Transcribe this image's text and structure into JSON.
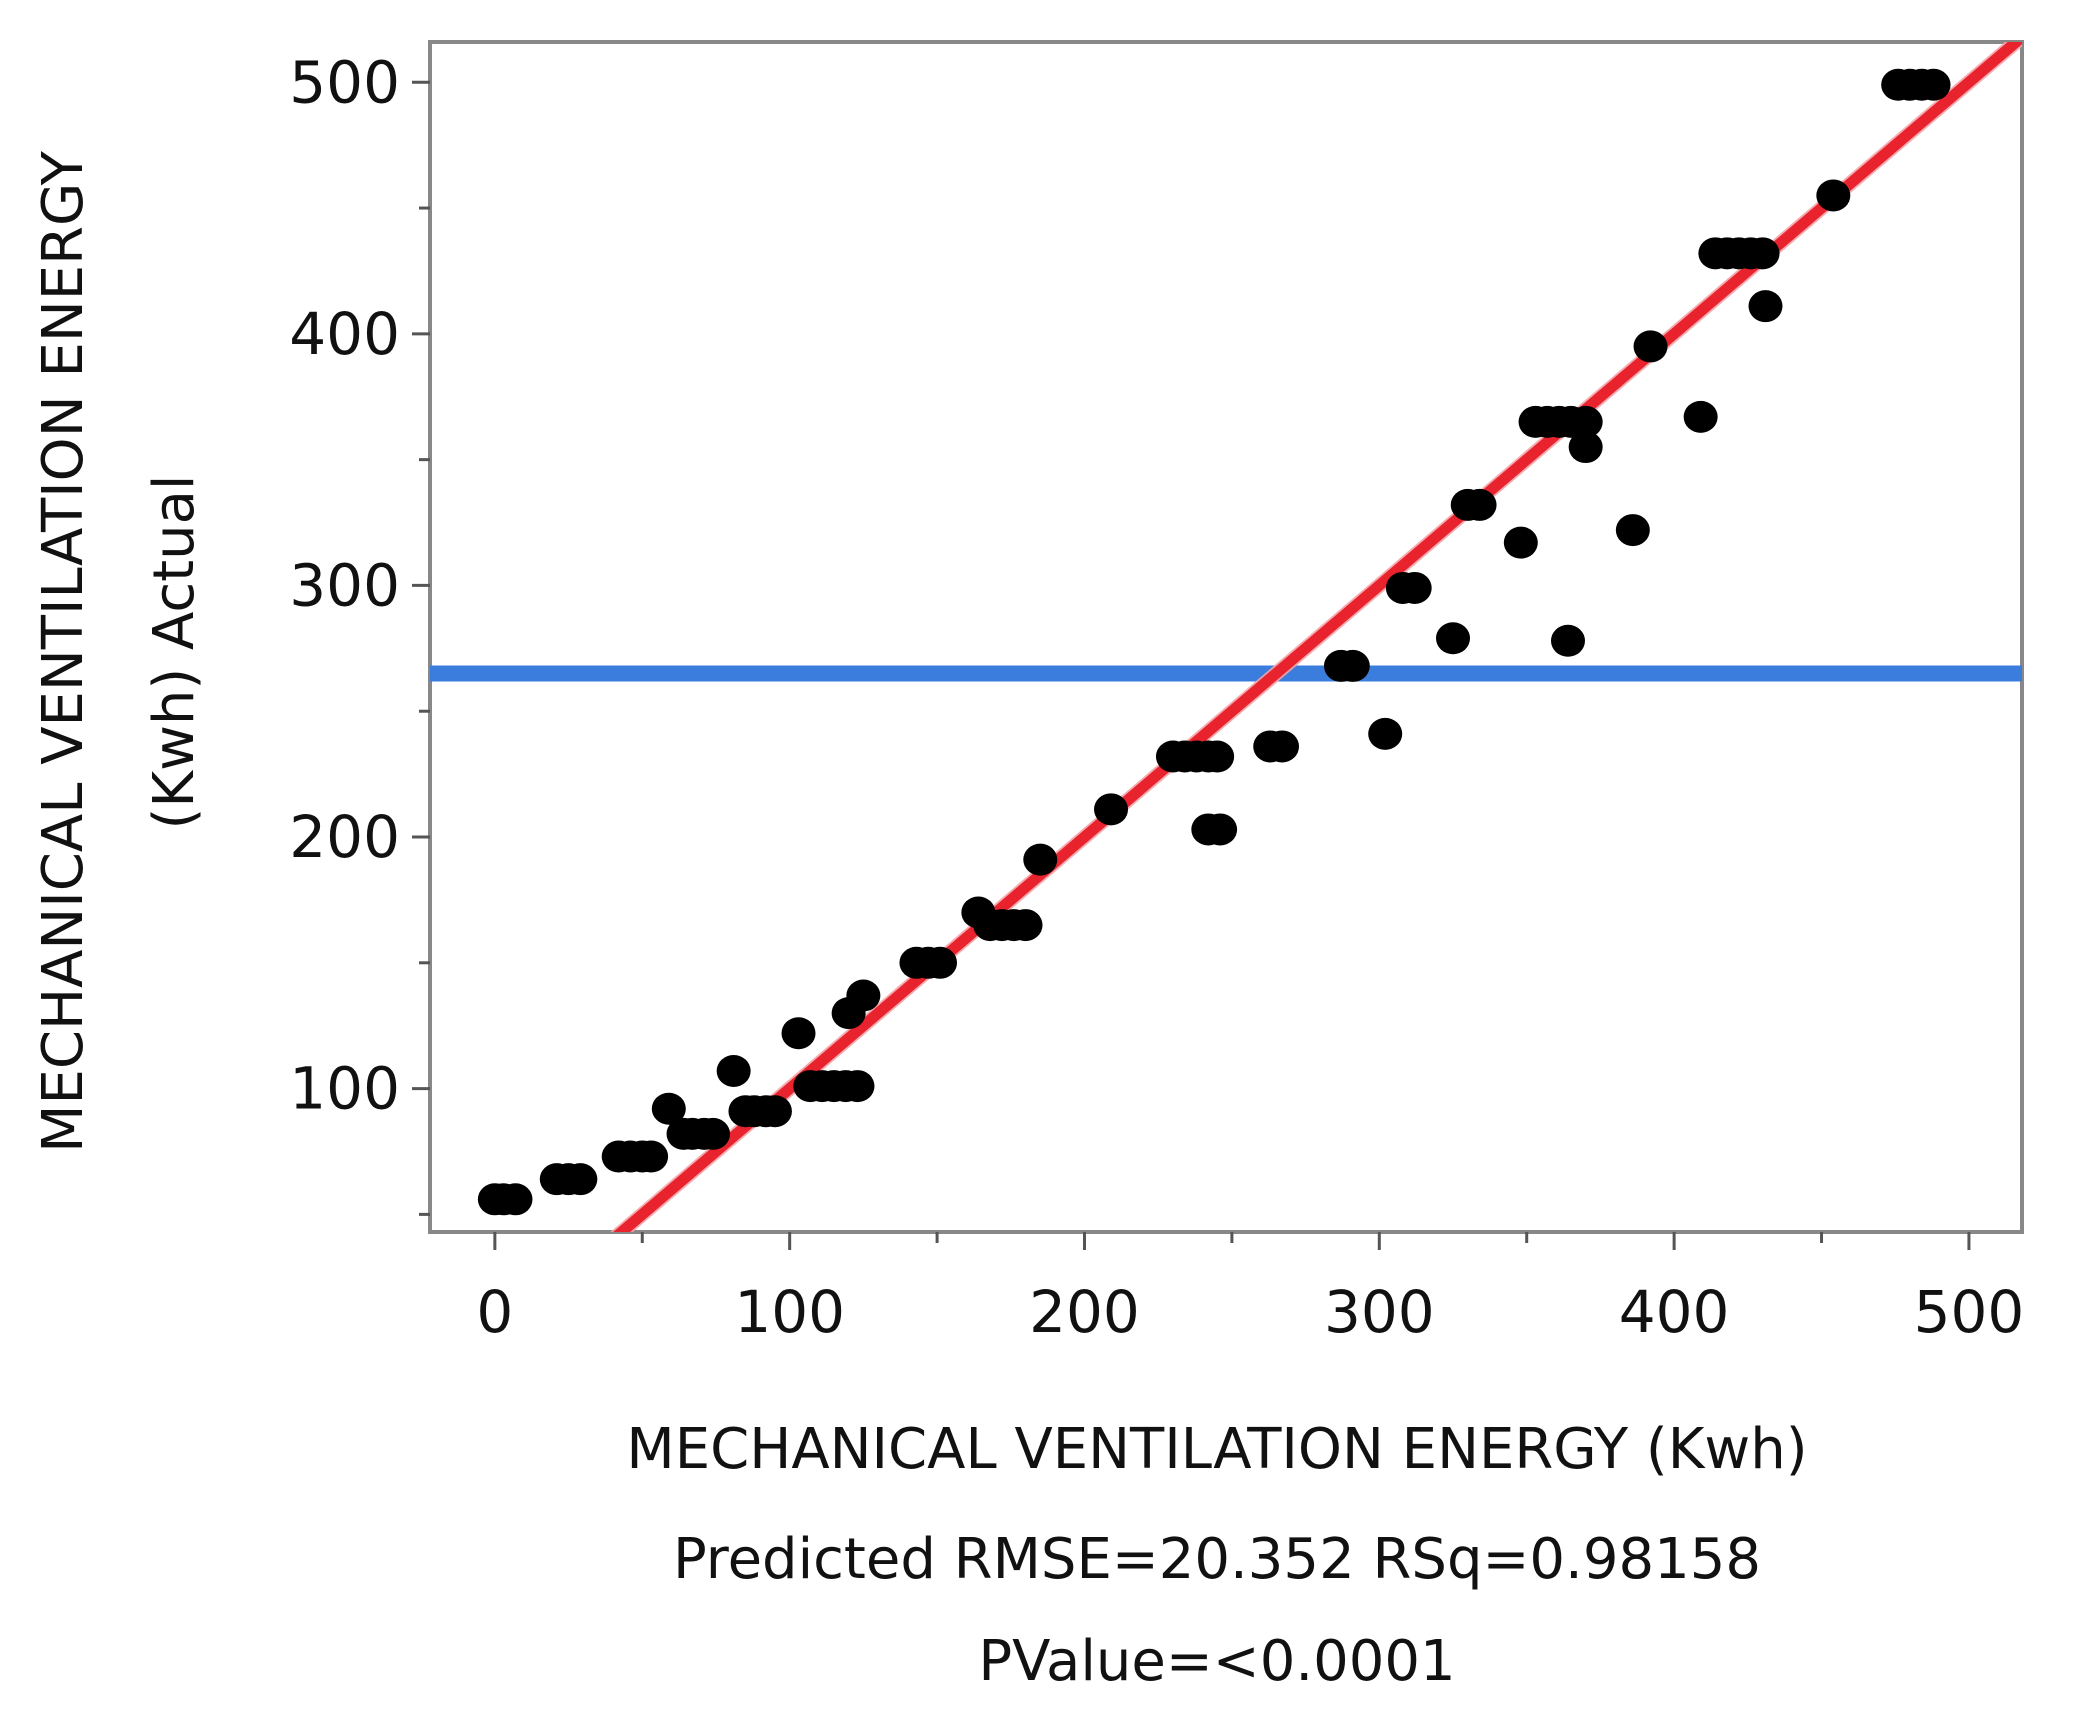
{
  "chart_data": {
    "type": "scatter",
    "title": "",
    "xlabel": "MECHANICAL VENTILATION ENERGY (Kwh)",
    "ylabel_line1": "MECHANICAL VENTILATION ENERGY",
    "ylabel_line2": "(Kwh) Actual",
    "xlim": [
      -22,
      518
    ],
    "ylim": [
      43,
      516
    ],
    "xticks": [
      0,
      100,
      200,
      300,
      400,
      500
    ],
    "xtick_labels": [
      "0",
      "100",
      "200",
      "300",
      "400",
      "500"
    ],
    "yticks": [
      100,
      200,
      300,
      400,
      500
    ],
    "ytick_labels": [
      "100",
      "200",
      "300",
      "400",
      "500"
    ],
    "grid": false,
    "stats": {
      "line1": "Predicted RMSE=20.352 RSq=0.98158",
      "line2": "PValue=<0.0001"
    },
    "mean_line": {
      "y": 265,
      "color": "#3b7ddd"
    },
    "fit_line": {
      "slope": 1.0,
      "intercept": 0,
      "color": "#e8232d",
      "band_color": "#f4a3a7"
    },
    "point_color": "#000000",
    "series": [
      {
        "name": "observations",
        "x": [
          0,
          3,
          7,
          21,
          25,
          29,
          42,
          46,
          50,
          53,
          59,
          64,
          67,
          71,
          74,
          81,
          85,
          88,
          92,
          95,
          103,
          107,
          111,
          115,
          119,
          123,
          120,
          125,
          143,
          147,
          151,
          164,
          168,
          172,
          176,
          180,
          185,
          209,
          230,
          234,
          238,
          242,
          245,
          242,
          246,
          263,
          267,
          287,
          291,
          302,
          308,
          312,
          325,
          330,
          334,
          348,
          353,
          357,
          361,
          365,
          370,
          364,
          370,
          386,
          392,
          409,
          414,
          418,
          422,
          426,
          430,
          431,
          454,
          476,
          480,
          484,
          488
        ],
        "y": [
          56,
          56,
          56,
          64,
          64,
          64,
          73,
          73,
          73,
          73,
          92,
          82,
          82,
          82,
          82,
          107,
          91,
          91,
          91,
          91,
          122,
          101,
          101,
          101,
          101,
          101,
          130,
          137,
          150,
          150,
          150,
          170,
          165,
          165,
          165,
          165,
          191,
          211,
          232,
          232,
          232,
          232,
          232,
          203,
          203,
          236,
          236,
          268,
          268,
          241,
          299,
          299,
          279,
          332,
          332,
          317,
          365,
          365,
          365,
          365,
          365,
          278,
          355,
          322,
          395,
          367,
          432,
          432,
          432,
          432,
          432,
          411,
          455,
          499,
          499,
          499,
          499
        ]
      }
    ]
  }
}
